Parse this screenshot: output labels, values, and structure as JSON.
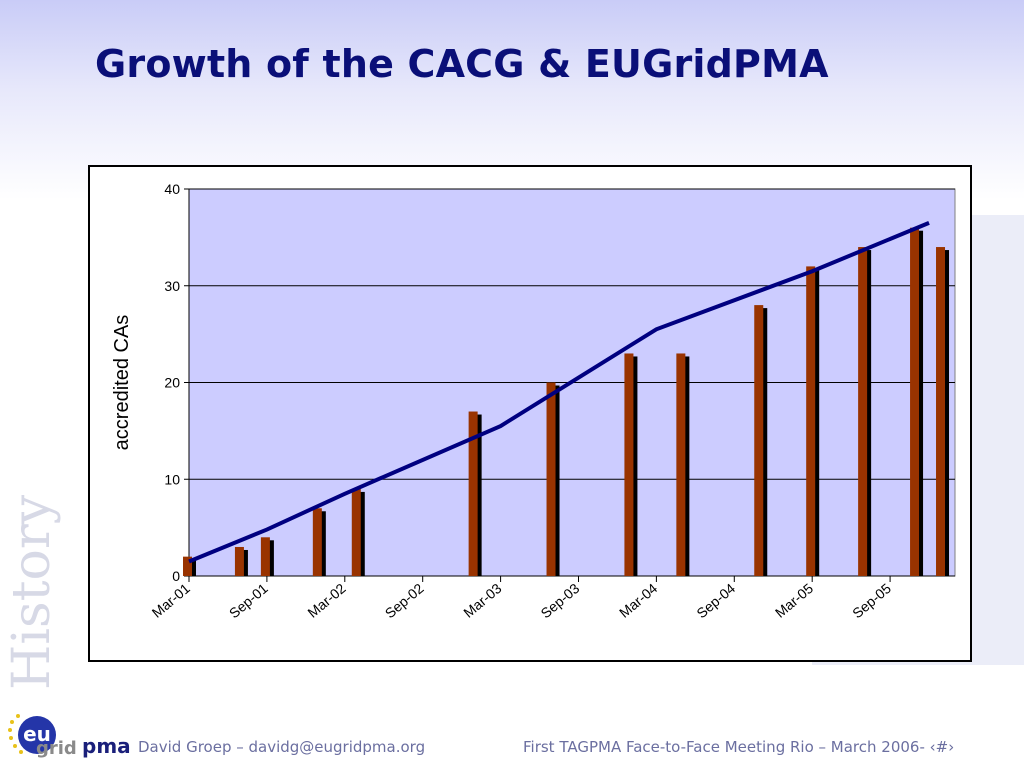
{
  "slide": {
    "title": "Growth of the CACG & EUGridPMA",
    "side_label": "History",
    "footer_left": "David Groep – davidg@eugridpma.org",
    "footer_right": "First TAGPMA Face-to-Face Meeting Rio – March 2006- ‹#›",
    "logo": {
      "eu": "eu",
      "grid": "grid",
      "pma": "pma"
    }
  },
  "chart_data": {
    "type": "bar",
    "ylabel": "accredited CAs",
    "xlabel": "",
    "ylim": [
      0,
      40
    ],
    "yticks": [
      0,
      10,
      20,
      30,
      40
    ],
    "xlim": [
      "2001-03",
      "2006-02"
    ],
    "x_tick_labels": [
      "Mar-01",
      "Sep-01",
      "Mar-02",
      "Sep-02",
      "Mar-03",
      "Sep-03",
      "Mar-04",
      "Sep-04",
      "Mar-05",
      "Sep-05"
    ],
    "bar_color": "#993300",
    "plot_background": "#ccccff",
    "trend_color": "#000080",
    "series": [
      {
        "points": [
          {
            "x": "2001-03",
            "y": 2
          },
          {
            "x": "2001-07",
            "y": 3
          },
          {
            "x": "2001-09",
            "y": 4
          },
          {
            "x": "2002-01",
            "y": 7
          },
          {
            "x": "2002-04",
            "y": 9
          },
          {
            "x": "2003-01",
            "y": 17
          },
          {
            "x": "2003-07",
            "y": 20
          },
          {
            "x": "2004-01",
            "y": 23
          },
          {
            "x": "2004-05",
            "y": 23
          },
          {
            "x": "2004-11",
            "y": 28
          },
          {
            "x": "2005-03",
            "y": 32
          },
          {
            "x": "2005-07",
            "y": 34
          },
          {
            "x": "2005-11",
            "y": 36
          },
          {
            "x": "2006-01",
            "y": 34
          }
        ]
      }
    ],
    "trend_line": [
      {
        "x": "2001-03",
        "y": 1.5
      },
      {
        "x": "2001-09",
        "y": 4.8
      },
      {
        "x": "2002-03",
        "y": 8.5
      },
      {
        "x": "2003-03",
        "y": 15.5
      },
      {
        "x": "2004-03",
        "y": 25.5
      },
      {
        "x": "2005-03",
        "y": 31.5
      },
      {
        "x": "2005-12",
        "y": 36.5
      }
    ],
    "grid": true,
    "legend": "none"
  }
}
